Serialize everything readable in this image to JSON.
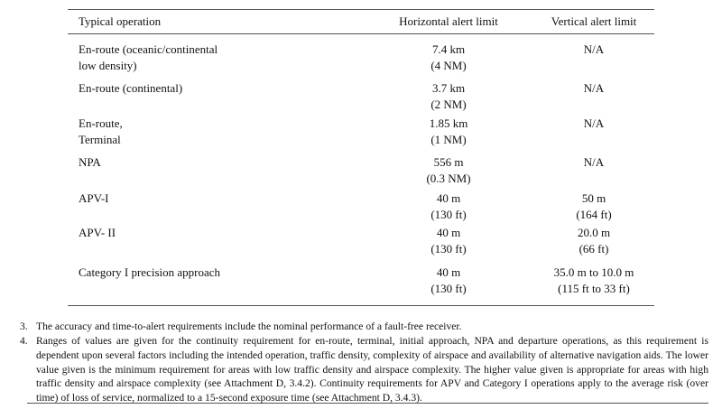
{
  "table": {
    "header": [
      "Typical operation",
      "Horizontal alert limit",
      "Vertical alert limit"
    ],
    "rows": [
      [
        [
          "En-route (oceanic/continental",
          "low density)"
        ],
        [
          "7.4 km",
          "(4 NM)"
        ],
        [
          "N/A"
        ]
      ],
      [
        [
          "En-route (continental)"
        ],
        [
          "3.7 km",
          "(2 NM)"
        ],
        [
          "N/A"
        ]
      ],
      [
        [
          "En-route,",
          "Terminal"
        ],
        [
          "1.85 km",
          "(1 NM)"
        ],
        [
          "N/A"
        ]
      ],
      [
        [
          "NPA"
        ],
        [
          "556 m",
          "(0.3 NM)"
        ],
        [
          "N/A"
        ]
      ],
      [
        [
          "APV-I"
        ],
        [
          "40 m",
          "(130 ft)"
        ],
        [
          "50 m",
          "(164 ft)"
        ]
      ],
      [
        [
          "APV- II"
        ],
        [
          "40 m",
          "(130 ft)"
        ],
        [
          "20.0 m",
          "(66 ft)"
        ]
      ],
      [
        [
          "Category I precision approach"
        ],
        [
          "40 m",
          "(130 ft)"
        ],
        [
          "35.0 m to 10.0 m",
          "(115 ft to 33 ft)"
        ]
      ]
    ]
  },
  "notes": [
    {
      "number": "3.",
      "text": "The accuracy and time-to-alert requirements include the nominal performance of a fault-free receiver."
    },
    {
      "number": "4.",
      "text": "Ranges of values are given for the continuity requirement for en-route, terminal, initial approach, NPA and departure operations, as this requirement is dependent upon several factors including the intended operation, traffic density, complexity of airspace and availability of alternative navigation aids. The lower value given is the minimum requirement for areas with low traffic density and airspace complexity. The higher value given is appropriate for areas with high traffic density and airspace complexity (see Attachment D, 3.4.2). Continuity requirements for APV and Category I operations apply to the average risk (over time) of loss of service, normalized to a 15-second exposure time (see Attachment D, 3.4.3)."
    }
  ]
}
